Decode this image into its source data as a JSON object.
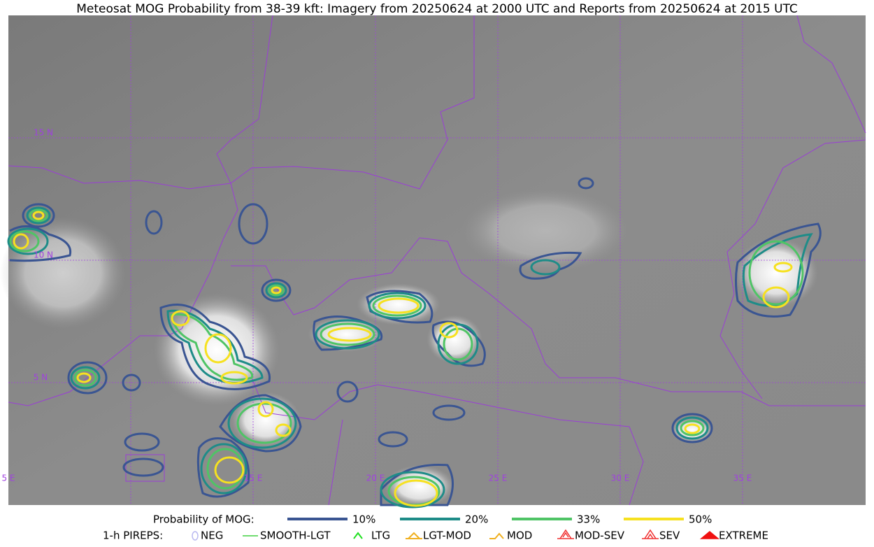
{
  "title": "Meteosat MOG Probability from 38-39 kft: Imagery from 20250624 at 2000 UTC and Reports from 20250624 at 2015 UTC",
  "map": {
    "lat_labels": [
      "15 N",
      "10 N",
      "5 N"
    ],
    "lon_labels": [
      "5 E",
      "15 E",
      "20 E",
      "25 E",
      "30 E",
      "35 E"
    ]
  },
  "legend": {
    "probability": {
      "label": "Probability of MOG:",
      "items": [
        {
          "label": "10%",
          "color": "#3a5592"
        },
        {
          "label": "20%",
          "color": "#1e8c88"
        },
        {
          "label": "33%",
          "color": "#4fc466"
        },
        {
          "label": "50%",
          "color": "#f6e120"
        }
      ]
    },
    "pireps": {
      "label": "1-h PIREPS:",
      "items": [
        {
          "label": "NEG",
          "color": "#b8b8f0"
        },
        {
          "label": "SMOOTH-LGT",
          "color": "#40d040"
        },
        {
          "label": "LTG",
          "color": "#20e020"
        },
        {
          "label": "LGT-MOD",
          "color": "#f0b020"
        },
        {
          "label": "MOD",
          "color": "#f0b020"
        },
        {
          "label": "MOD-SEV",
          "color": "#f03030"
        },
        {
          "label": "SEV",
          "color": "#f03030"
        },
        {
          "label": "EXTREME",
          "color": "#f01010"
        }
      ]
    }
  }
}
